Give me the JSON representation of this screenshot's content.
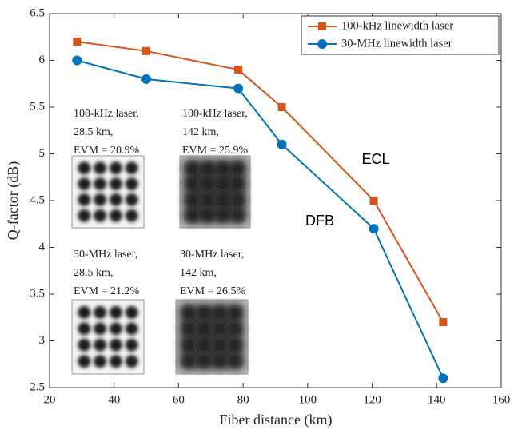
{
  "chart_data": {
    "type": "line",
    "xlabel": "Fiber distance (km)",
    "ylabel": "Q-factor (dB)",
    "x": [
      28.5,
      50,
      78.5,
      92,
      120.5,
      142
    ],
    "series": [
      {
        "name": "100-kHz linewidth laser",
        "color": "#d95319",
        "marker": "square",
        "values": [
          6.2,
          6.1,
          5.9,
          5.5,
          4.5,
          3.2
        ]
      },
      {
        "name": "30-MHz linewidth laser",
        "color": "#0072bd",
        "marker": "circle",
        "values": [
          6.0,
          5.8,
          5.7,
          5.1,
          4.2,
          2.6
        ]
      }
    ],
    "xlim": [
      20,
      160
    ],
    "xticks": [
      20,
      40,
      60,
      80,
      100,
      120,
      140,
      160
    ],
    "ylim": [
      2.5,
      6.5
    ],
    "yticks": [
      2.5,
      3,
      3.5,
      4,
      4.5,
      5,
      5.5,
      6,
      6.5
    ],
    "grid": false,
    "legend": "top-right",
    "annotations": [
      {
        "lines": [
          "100-kHz laser,",
          "28.5 km,",
          "EVM = 20.9%"
        ]
      },
      {
        "lines": [
          "100-kHz laser,",
          "142 km,",
          "EVM = 25.9%"
        ]
      },
      {
        "lines": [
          "30-MHz laser,",
          "28.5 km,",
          "EVM = 21.2%"
        ]
      },
      {
        "lines": [
          "30-MHz laser,",
          "142 km,",
          "EVM = 26.5%"
        ]
      },
      {
        "lines": [
          "ECL"
        ]
      },
      {
        "lines": [
          "DFB"
        ]
      }
    ]
  }
}
